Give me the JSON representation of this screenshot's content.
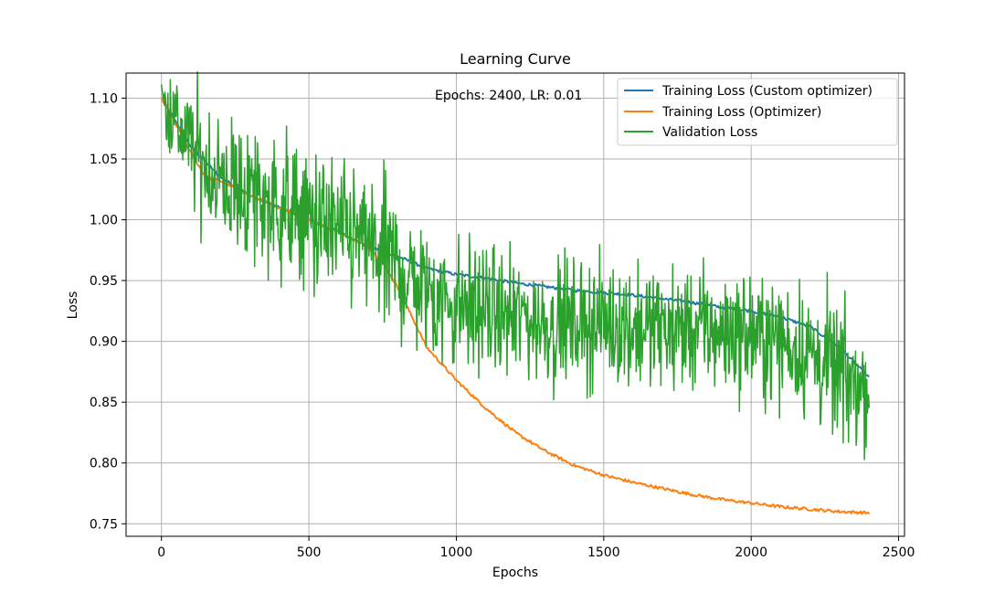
{
  "chart_data": {
    "type": "line",
    "title": "Learning Curve",
    "xlabel": "Epochs",
    "ylabel": "Loss",
    "xlim": [
      -120,
      2520
    ],
    "ylim": [
      0.7397,
      1.1206
    ],
    "xticks": [
      0,
      500,
      1000,
      1500,
      2000,
      2500
    ],
    "xtick_labels": [
      "0",
      "500",
      "1000",
      "1500",
      "2000",
      "2500"
    ],
    "yticks": [
      0.75,
      0.8,
      0.85,
      0.9,
      0.95,
      1.0,
      1.05,
      1.1
    ],
    "ytick_labels": [
      "0.75",
      "0.80",
      "0.85",
      "0.90",
      "0.95",
      "1.00",
      "1.05",
      "1.10"
    ],
    "grid": true,
    "legend_position": "top-right",
    "annotation": "Epochs: 2400, LR: 0.01",
    "series": [
      {
        "name": "Training Loss (Custom optimizer)",
        "color": "#1f77b4",
        "x": [
          0,
          100,
          200,
          300,
          400,
          500,
          600,
          700,
          800,
          900,
          1000,
          1100,
          1200,
          1300,
          1400,
          1500,
          1600,
          1700,
          1800,
          1900,
          2000,
          2100,
          2200,
          2300,
          2400
        ],
        "y": [
          1.1,
          1.06,
          1.035,
          1.02,
          1.01,
          1.0,
          0.99,
          0.978,
          0.97,
          0.96,
          0.955,
          0.952,
          0.948,
          0.945,
          0.942,
          0.94,
          0.938,
          0.935,
          0.932,
          0.928,
          0.925,
          0.92,
          0.912,
          0.895,
          0.87
        ]
      },
      {
        "name": "Training Loss (Optimizer)",
        "color": "#ff7f0e",
        "x": [
          0,
          100,
          150,
          200,
          300,
          400,
          500,
          600,
          700,
          750,
          800,
          850,
          900,
          1000,
          1100,
          1200,
          1300,
          1400,
          1500,
          1600,
          1700,
          1800,
          1900,
          2000,
          2100,
          2200,
          2300,
          2400
        ],
        "y": [
          1.1,
          1.055,
          1.035,
          1.032,
          1.02,
          1.01,
          1.0,
          0.99,
          0.978,
          0.965,
          0.945,
          0.92,
          0.895,
          0.868,
          0.845,
          0.825,
          0.81,
          0.798,
          0.79,
          0.784,
          0.779,
          0.774,
          0.77,
          0.767,
          0.764,
          0.762,
          0.76,
          0.759
        ]
      },
      {
        "name": "Validation Loss",
        "color": "#2ca02c",
        "x": [
          0,
          100,
          200,
          300,
          400,
          500,
          600,
          700,
          800,
          900,
          1000,
          1100,
          1200,
          1300,
          1400,
          1500,
          1600,
          1700,
          1800,
          1900,
          2000,
          2100,
          2200,
          2300,
          2400
        ],
        "y": [
          1.1,
          1.06,
          1.03,
          1.02,
          1.01,
          1.0,
          0.99,
          0.98,
          0.96,
          0.94,
          0.93,
          0.925,
          0.92,
          0.915,
          0.915,
          0.915,
          0.912,
          0.91,
          0.91,
          0.908,
          0.905,
          0.9,
          0.89,
          0.87,
          0.86
        ],
        "noise_amplitude": [
          0.012,
          0.025,
          0.03,
          0.03,
          0.03,
          0.03,
          0.03,
          0.03,
          0.03,
          0.03,
          0.028,
          0.025,
          0.025,
          0.025,
          0.025,
          0.025,
          0.025,
          0.025,
          0.025,
          0.025,
          0.025,
          0.025,
          0.028,
          0.03,
          0.02
        ]
      }
    ]
  }
}
